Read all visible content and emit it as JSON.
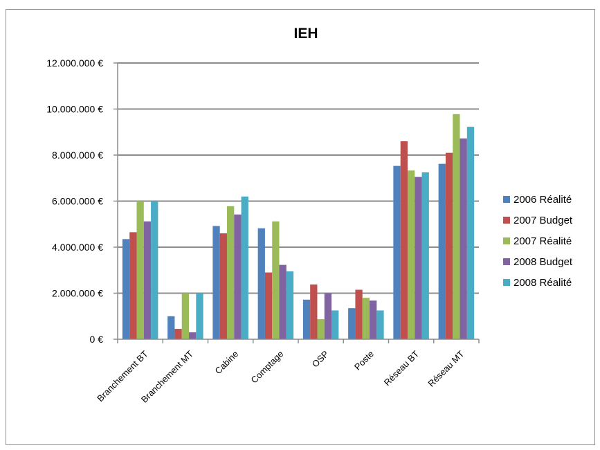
{
  "chart_data": {
    "type": "bar",
    "title": "IEH",
    "xlabel": "",
    "ylabel": "",
    "ylim": [
      0,
      12000000
    ],
    "yticks": [
      0,
      2000000,
      4000000,
      6000000,
      8000000,
      10000000,
      12000000
    ],
    "ytick_labels": [
      "0 €",
      "2.000.000 €",
      "4.000.000 €",
      "6.000.000 €",
      "8.000.000 €",
      "10.000.000 €",
      "12.000.000 €"
    ],
    "grid": true,
    "legend_position": "right",
    "categories": [
      "Branchement BT",
      "Branchement MT",
      "Cabine",
      "Comptage",
      "OSP",
      "Poste",
      "Réseau BT",
      "Réseau MT"
    ],
    "series": [
      {
        "name": "2006 Réalité",
        "color": "#4f81bd",
        "values": [
          4350000,
          1000000,
          4920000,
          4820000,
          1720000,
          1350000,
          7530000,
          7620000
        ]
      },
      {
        "name": "2007 Budget",
        "color": "#c0504d",
        "values": [
          4650000,
          450000,
          4600000,
          2900000,
          2380000,
          2150000,
          8600000,
          8100000
        ]
      },
      {
        "name": "2007 Réalité",
        "color": "#9bbb59",
        "values": [
          6000000,
          2000000,
          5780000,
          5120000,
          870000,
          1800000,
          7330000,
          9780000
        ]
      },
      {
        "name": "2008 Budget",
        "color": "#8064a2",
        "values": [
          5120000,
          300000,
          5420000,
          3230000,
          2000000,
          1680000,
          7050000,
          8720000
        ]
      },
      {
        "name": "2008 Réalité",
        "color": "#4bacc6",
        "values": [
          6000000,
          2000000,
          6200000,
          2950000,
          1250000,
          1250000,
          7250000,
          9230000
        ]
      }
    ]
  }
}
